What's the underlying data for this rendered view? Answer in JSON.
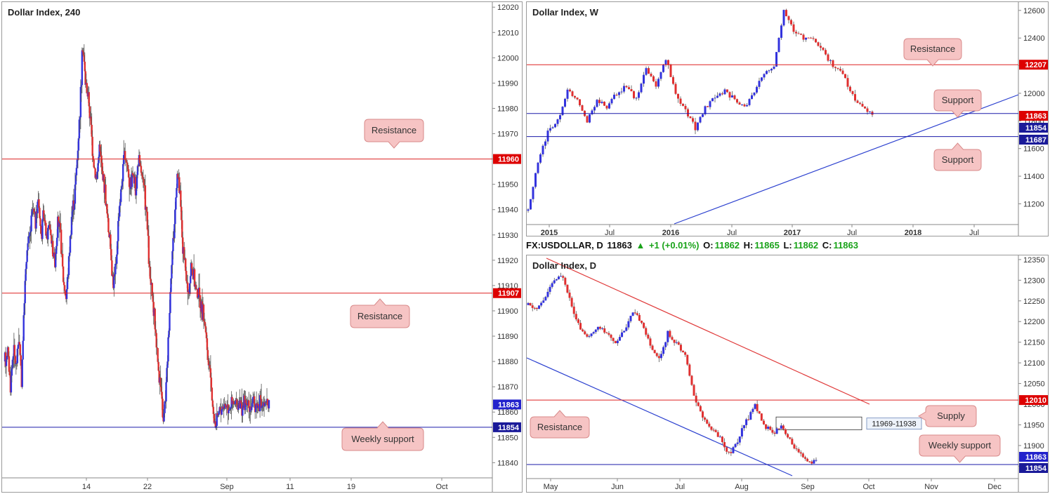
{
  "colors": {
    "bull": "#3333dd",
    "bear": "#e03030",
    "resistance_line": "#dd2222",
    "support_line": "#1a1aaa",
    "trend_blue": "#2a3fcf",
    "trend_red": "#e03a3a",
    "callout_fill": "#f6c4c4",
    "callout_stroke": "#d88a8a",
    "price_tag_current": "#2222cc",
    "price_tag_resistance": "#dd0000",
    "price_tag_support": "#1a1a99"
  },
  "infobar": {
    "symbol": "FX:USDOLLAR, D",
    "last": "11863",
    "change": "+1 (+0.01%)",
    "o_label": "O:",
    "o_val": "11862",
    "h_label": "H:",
    "h_val": "11865",
    "l_label": "L:",
    "l_val": "11862",
    "c_label": "C:",
    "c_val": "11863"
  },
  "chart_data": [
    {
      "title": "Dollar Index, 240",
      "type": "line",
      "ylim": [
        11834,
        12022
      ],
      "y_ticks": [
        "12020",
        "12010",
        "12000",
        "11990",
        "11980",
        "11970",
        "11960",
        "11950",
        "11940",
        "11930",
        "11920",
        "11910",
        "11900",
        "11890",
        "11880",
        "11870",
        "11860",
        "11850",
        "11840"
      ],
      "x_ticks": [
        "14",
        "22",
        "Sep",
        "11",
        "19",
        "Oct"
      ],
      "price_line": {
        "x": [
          0,
          4,
          8,
          12,
          16,
          20,
          24,
          28,
          32,
          36,
          40,
          44,
          48,
          52,
          56,
          60,
          64,
          68,
          72,
          76,
          80,
          84,
          88,
          92,
          96,
          100,
          104,
          108,
          112,
          116,
          120,
          124,
          128,
          132,
          136,
          140,
          144,
          148,
          152,
          156,
          160,
          164,
          168,
          172,
          176,
          180,
          184,
          188,
          192,
          196,
          200,
          204,
          208,
          212,
          216,
          220,
          224,
          228,
          232,
          236,
          240,
          244,
          248,
          252,
          256,
          260,
          264,
          268,
          272,
          276,
          280,
          284,
          288,
          292,
          296,
          300,
          304,
          308,
          312,
          316,
          320,
          324,
          328,
          332,
          336,
          340,
          344,
          348,
          352,
          356,
          360,
          364,
          368,
          372,
          376,
          380
        ],
        "values": [
          11880,
          11885,
          11870,
          11885,
          11878,
          11890,
          11873,
          11905,
          11925,
          11930,
          11940,
          11935,
          11945,
          11930,
          11938,
          11928,
          11935,
          11925,
          11920,
          11935,
          11930,
          11912,
          11905,
          11920,
          11938,
          11945,
          11960,
          11980,
          12005,
          11990,
          11985,
          11972,
          11958,
          11952,
          11965,
          11955,
          11948,
          11935,
          11925,
          11910,
          11918,
          11940,
          11950,
          11962,
          11958,
          11950,
          11955,
          11947,
          11960,
          11955,
          11948,
          11938,
          11915,
          11905,
          11895,
          11880,
          11870,
          11855,
          11870,
          11895,
          11920,
          11935,
          11955,
          11945,
          11925,
          11915,
          11905,
          11918,
          11912,
          11908,
          11905,
          11900,
          11895,
          11880,
          11875,
          11858,
          11855,
          11860,
          11862,
          11863,
          11863,
          11863,
          11863,
          11863,
          11863,
          11863,
          11863,
          11863,
          11863,
          11863,
          11863,
          11863,
          11863,
          11863,
          11863,
          11863
        ]
      },
      "levels": [
        {
          "value": 11960,
          "label": "11960",
          "kind": "resistance"
        },
        {
          "value": 11907,
          "label": "11907",
          "kind": "resistance"
        },
        {
          "value": 11854,
          "label": "11854",
          "kind": "support"
        }
      ],
      "current_price": {
        "value": 11863,
        "label": "11863"
      },
      "callouts": [
        {
          "text": "Resistance",
          "anchor_value": 11960
        },
        {
          "text": "Resistance",
          "anchor_value": 11907
        },
        {
          "text": "Weekly support",
          "anchor_value": 11854
        }
      ]
    },
    {
      "title": "Dollar Index, W",
      "type": "line",
      "ylim": [
        11050,
        12660
      ],
      "y_ticks": [
        "12600",
        "12400",
        "12200",
        "12000",
        "11800",
        "11600",
        "11400",
        "11200"
      ],
      "x_ticks": [
        "2015",
        "Jul",
        "2016",
        "Jul",
        "2017",
        "Jul",
        "2018",
        "Jul"
      ],
      "price_line": {
        "x": [
          0,
          4,
          8,
          12,
          16,
          20,
          24,
          28,
          32,
          36,
          40,
          44,
          48,
          52,
          56,
          60,
          64,
          68,
          72,
          76,
          80,
          84,
          88,
          92,
          96,
          100,
          104,
          108,
          112,
          116,
          120,
          124,
          128,
          132,
          136,
          140
        ],
        "values": [
          11150,
          11500,
          11720,
          11800,
          12020,
          11950,
          11800,
          11950,
          11900,
          12000,
          12050,
          11950,
          12180,
          12050,
          12250,
          12000,
          11880,
          11750,
          11900,
          11980,
          12020,
          11950,
          11900,
          12000,
          12150,
          12200,
          12600,
          12450,
          12400,
          12400,
          12300,
          12200,
          12150,
          11980,
          11900,
          11863
        ]
      },
      "levels": [
        {
          "value": 12207,
          "label": "12207",
          "kind": "resistance"
        },
        {
          "value": 11863,
          "label": "11863",
          "kind": "current"
        },
        {
          "value": 11854,
          "label": "11854",
          "kind": "support"
        },
        {
          "value": 11687,
          "label": "11687",
          "kind": "support"
        }
      ],
      "callouts": [
        {
          "text": "Resistance",
          "anchor_value": 12207
        },
        {
          "text": "Support",
          "anchor_value": 11854
        },
        {
          "text": "Support",
          "anchor_value": 11687
        }
      ]
    },
    {
      "title": "Dollar Index, D",
      "type": "line",
      "ylim": [
        11820,
        12360
      ],
      "y_ticks": [
        "12350",
        "12300",
        "12250",
        "12200",
        "12150",
        "12100",
        "12050",
        "12000",
        "11950",
        "11900",
        "11850"
      ],
      "x_ticks": [
        "May",
        "Jun",
        "Jul",
        "Aug",
        "Sep",
        "Oct",
        "Nov",
        "Dec"
      ],
      "price_line": {
        "x": [
          0,
          4,
          8,
          12,
          16,
          20,
          24,
          28,
          32,
          36,
          40,
          44,
          48,
          52,
          56,
          60,
          64,
          68,
          72,
          76,
          80,
          84,
          88,
          92,
          96,
          100,
          104,
          108,
          112,
          116,
          120,
          124,
          128,
          132
        ],
        "values": [
          12240,
          12230,
          12260,
          12300,
          12310,
          12240,
          12180,
          12160,
          12190,
          12170,
          12150,
          12180,
          12220,
          12200,
          12140,
          12110,
          12170,
          12150,
          12120,
          12020,
          11970,
          11940,
          11920,
          11880,
          11910,
          11960,
          12000,
          11950,
          11930,
          11950,
          11910,
          11880,
          11860,
          11863
        ]
      },
      "levels": [
        {
          "value": 12010,
          "label": "12010",
          "kind": "resistance"
        },
        {
          "value": 11863,
          "label": "11863",
          "kind": "current"
        },
        {
          "value": 11854,
          "label": "11854",
          "kind": "support"
        }
      ],
      "zone": {
        "from": 11938,
        "to": 11969,
        "label": "11969-11938"
      },
      "callouts": [
        {
          "text": "Supply",
          "anchor_value": 11953
        },
        {
          "text": "Resistance",
          "anchor_value": 12010
        },
        {
          "text": "Weekly support",
          "anchor_value": 11854
        }
      ]
    }
  ]
}
